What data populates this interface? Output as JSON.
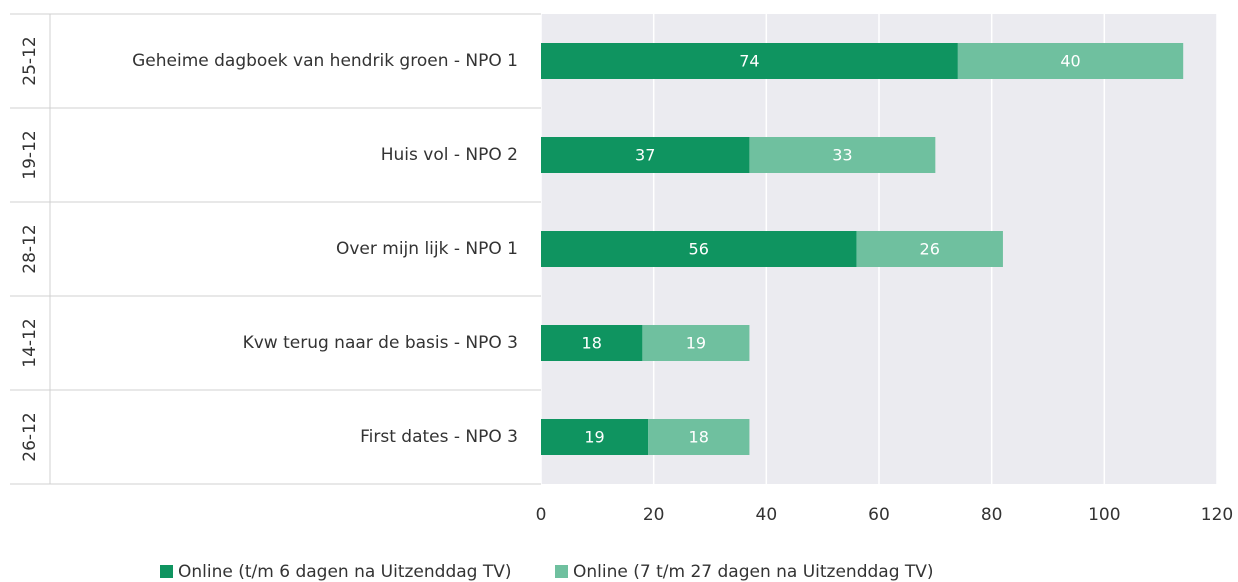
{
  "chart_data": {
    "type": "barh_stacked",
    "dates": [
      "25-12",
      "19-12",
      "28-12",
      "14-12",
      "26-12"
    ],
    "categories": [
      "Geheime dagboek van hendrik groen - NPO 1",
      "Huis vol - NPO 2",
      "Over mijn lijk - NPO 1",
      "Kvw terug naar de basis - NPO 3",
      "First dates - NPO 3"
    ],
    "series": [
      {
        "name": "Online (t/m 6 dagen na Uitzenddag TV)",
        "color": "#0f9460",
        "values": [
          74,
          37,
          56,
          18,
          19
        ]
      },
      {
        "name": "Online (7 t/m 27 dagen na Uitzenddag TV)",
        "color": "#6fc09f",
        "values": [
          40,
          33,
          26,
          19,
          18
        ]
      }
    ],
    "xlim": [
      0,
      120
    ],
    "xticks": [
      0,
      20,
      40,
      60,
      80,
      100,
      120
    ],
    "grid": true,
    "legend": "bottom"
  }
}
